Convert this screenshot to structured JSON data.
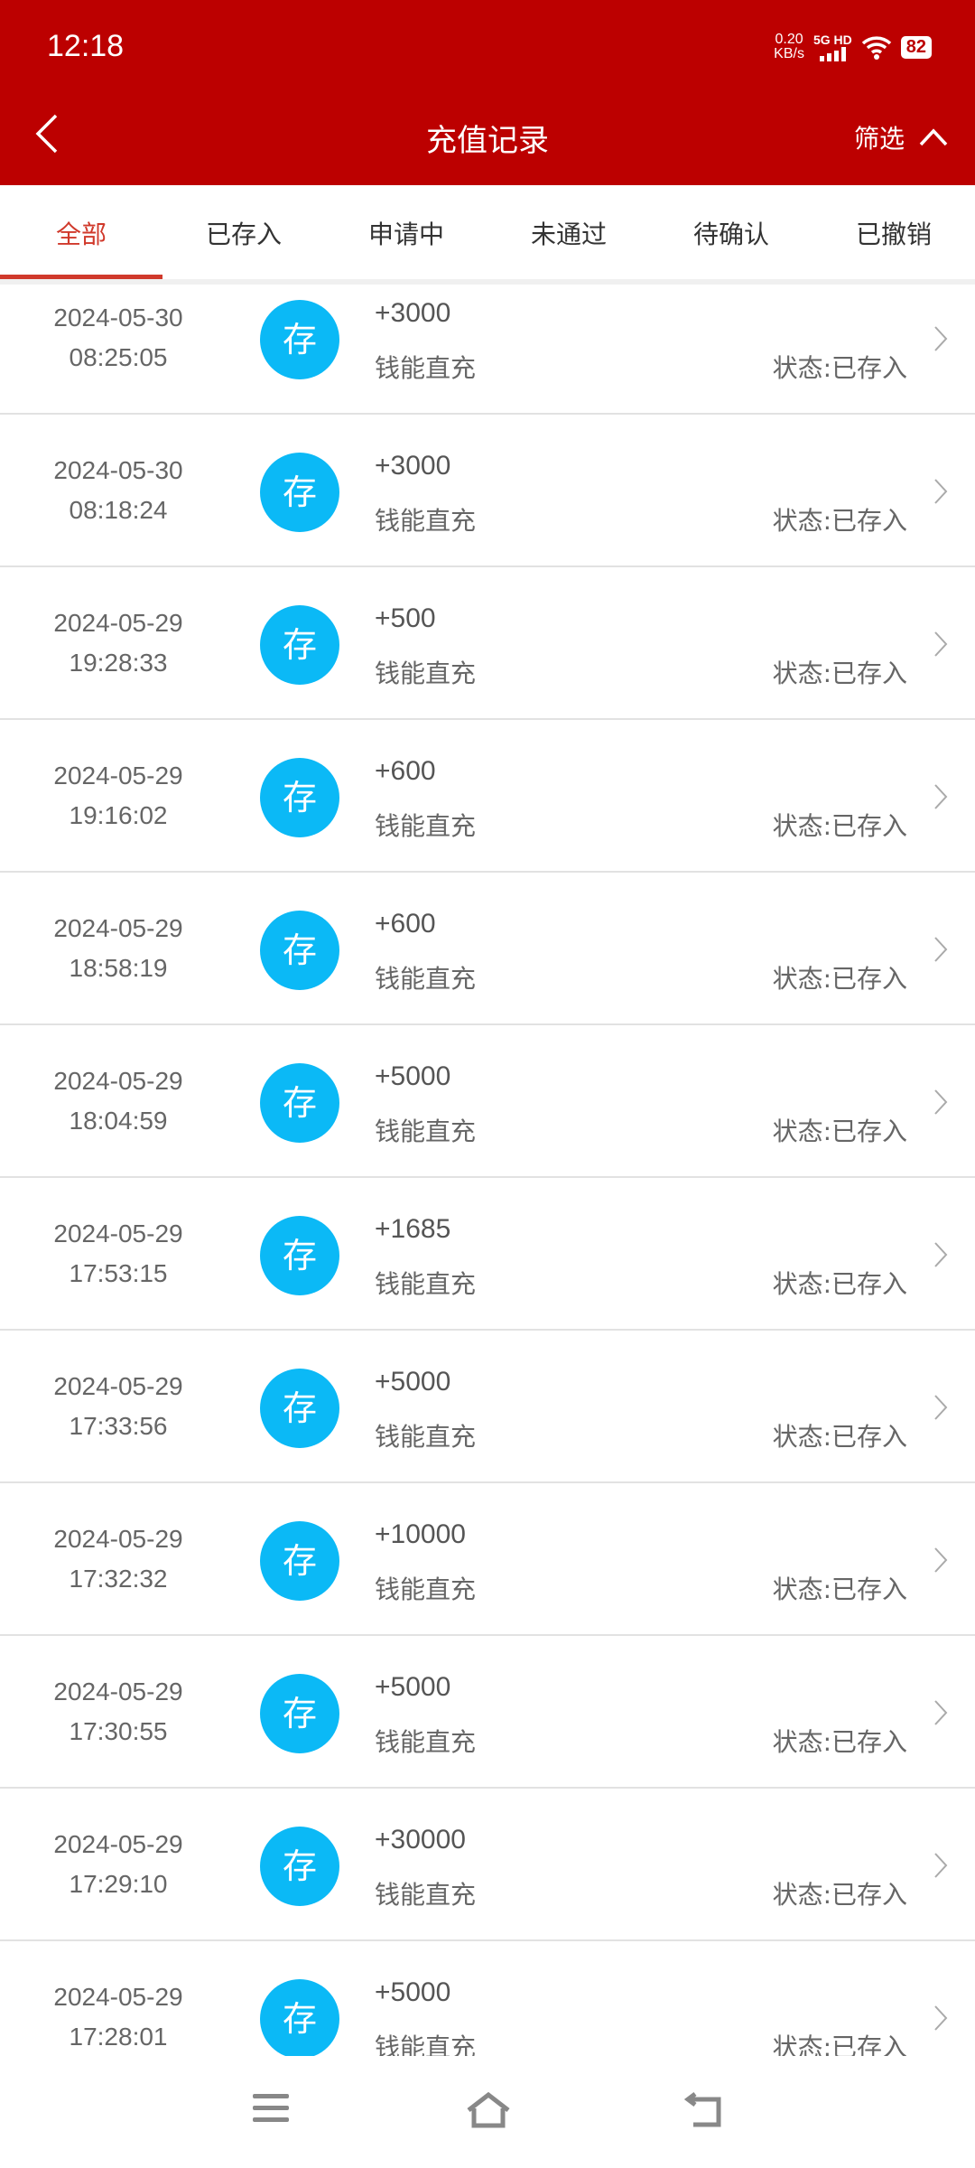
{
  "status_bar": {
    "time": "12:18",
    "speed_value": "0.20",
    "speed_unit": "KB/s",
    "network": "5G HD",
    "battery": "82"
  },
  "header": {
    "title": "充值记录",
    "filter_label": "筛选"
  },
  "tabs": [
    {
      "label": "全部",
      "active": true
    },
    {
      "label": "已存入"
    },
    {
      "label": "申请中"
    },
    {
      "label": "未通过"
    },
    {
      "label": "待确认"
    },
    {
      "label": "已撤销"
    }
  ],
  "colors": {
    "brand": "#bc0000",
    "tab_active": "#d0392b",
    "badge": "#0bb9f6"
  },
  "records": [
    {
      "date": "2024-05-30",
      "time": "08:25:05",
      "badge": "存",
      "amount": "+3000",
      "method": "钱能直充",
      "status": "状态:已存入"
    },
    {
      "date": "2024-05-30",
      "time": "08:18:24",
      "badge": "存",
      "amount": "+3000",
      "method": "钱能直充",
      "status": "状态:已存入"
    },
    {
      "date": "2024-05-29",
      "time": "19:28:33",
      "badge": "存",
      "amount": "+500",
      "method": "钱能直充",
      "status": "状态:已存入"
    },
    {
      "date": "2024-05-29",
      "time": "19:16:02",
      "badge": "存",
      "amount": "+600",
      "method": "钱能直充",
      "status": "状态:已存入"
    },
    {
      "date": "2024-05-29",
      "time": "18:58:19",
      "badge": "存",
      "amount": "+600",
      "method": "钱能直充",
      "status": "状态:已存入"
    },
    {
      "date": "2024-05-29",
      "time": "18:04:59",
      "badge": "存",
      "amount": "+5000",
      "method": "钱能直充",
      "status": "状态:已存入"
    },
    {
      "date": "2024-05-29",
      "time": "17:53:15",
      "badge": "存",
      "amount": "+1685",
      "method": "钱能直充",
      "status": "状态:已存入"
    },
    {
      "date": "2024-05-29",
      "time": "17:33:56",
      "badge": "存",
      "amount": "+5000",
      "method": "钱能直充",
      "status": "状态:已存入"
    },
    {
      "date": "2024-05-29",
      "time": "17:32:32",
      "badge": "存",
      "amount": "+10000",
      "method": "钱能直充",
      "status": "状态:已存入"
    },
    {
      "date": "2024-05-29",
      "time": "17:30:55",
      "badge": "存",
      "amount": "+5000",
      "method": "钱能直充",
      "status": "状态:已存入"
    },
    {
      "date": "2024-05-29",
      "time": "17:29:10",
      "badge": "存",
      "amount": "+30000",
      "method": "钱能直充",
      "status": "状态:已存入"
    },
    {
      "date": "2024-05-29",
      "time": "17:28:01",
      "badge": "存",
      "amount": "+5000",
      "method": "钱能直充",
      "status": "状态:已存入"
    }
  ]
}
